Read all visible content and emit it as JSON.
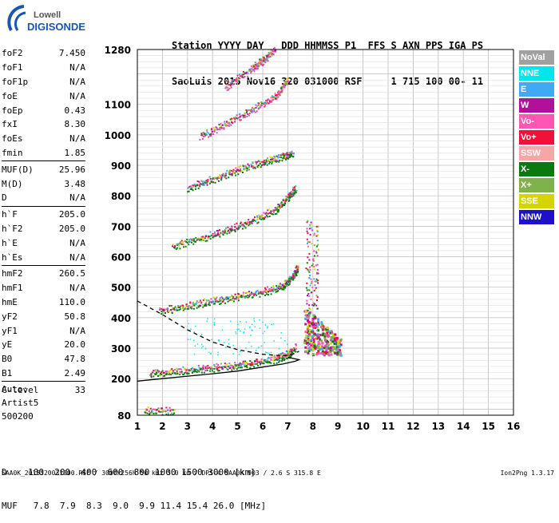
{
  "logo": {
    "line1": "Lowell",
    "line2": "DIGISONDE"
  },
  "header": {
    "line1": "Station YYYY DAY   DDD HHMMSS P1  FFS S AXN PPS IGA PS",
    "line2": "SaoLuis 2015 Nov16 320 031000 RSF     1 715 100 00- 11"
  },
  "params": [
    {
      "name": "foF2",
      "value": "7.450"
    },
    {
      "name": "foF1",
      "value": "N/A"
    },
    {
      "name": "foF1p",
      "value": "N/A"
    },
    {
      "name": "foE",
      "value": "N/A"
    },
    {
      "name": "foEp",
      "value": "0.43"
    },
    {
      "name": "fxI",
      "value": "8.30"
    },
    {
      "name": "foEs",
      "value": "N/A"
    },
    {
      "name": "fmin",
      "value": "1.85"
    },
    {
      "name": "MUF(D)",
      "value": "25.96"
    },
    {
      "name": "M(D)",
      "value": "3.48"
    },
    {
      "name": "D",
      "value": "N/A"
    },
    {
      "name": "h`F",
      "value": "205.0"
    },
    {
      "name": "h`F2",
      "value": "205.0"
    },
    {
      "name": "h`E",
      "value": "N/A"
    },
    {
      "name": "h`Es",
      "value": "N/A"
    },
    {
      "name": "hmF2",
      "value": "260.5"
    },
    {
      "name": "hmF1",
      "value": "N/A"
    },
    {
      "name": "hmE",
      "value": "110.0"
    },
    {
      "name": "yF2",
      "value": "50.8"
    },
    {
      "name": "yF1",
      "value": "N/A"
    },
    {
      "name": "yE",
      "value": "20.0"
    },
    {
      "name": "B0",
      "value": "47.8"
    },
    {
      "name": "B1",
      "value": "2.49"
    },
    {
      "name": "C-level",
      "value": "33"
    }
  ],
  "auto": {
    "line1": "Auto:",
    "line2": "Artist5",
    "line3": "500200"
  },
  "legend": [
    {
      "label": "NoVal",
      "color": "#a0a0a0"
    },
    {
      "label": "NNE",
      "color": "#00e5ee"
    },
    {
      "label": "E",
      "color": "#3fa9f5"
    },
    {
      "label": "W",
      "color": "#b0109a"
    },
    {
      "label": "Vo-",
      "color": "#ff55b5"
    },
    {
      "label": "Vo+",
      "color": "#f0103a"
    },
    {
      "label": "SSW",
      "color": "#f6a6a6"
    },
    {
      "label": "X-",
      "color": "#0a7a10"
    },
    {
      "label": "X+",
      "color": "#7fb24a"
    },
    {
      "label": "SSE",
      "color": "#d4d400"
    },
    {
      "label": "NNW",
      "color": "#1e10c8"
    }
  ],
  "footer": {
    "d_row": "D    100  200  400  600  800 1000 1500 3000 [km]",
    "muf_row": "MUF   7.8  7.9  8.3  9.0  9.9 11.4 15.4 26.0 [MHz]",
    "file": "SAA0K_2015320031000.RSF / 300fx256h 50 kHz 5.0 km / DPS-4 SAA0K 903 / 2.6 S 315.8 E",
    "version": "Ion2Png 1.3.17"
  },
  "chart_data": {
    "type": "scatter",
    "title": "",
    "xlabel": "",
    "ylabel": "",
    "xlim": [
      1,
      16
    ],
    "ylim": [
      80,
      1280
    ],
    "x_ticks": [
      1,
      2,
      3,
      4,
      5,
      6,
      7,
      8,
      9,
      10,
      11,
      12,
      13,
      14,
      15,
      16
    ],
    "y_ticks": [
      80,
      200,
      300,
      400,
      500,
      600,
      700,
      800,
      900,
      1000,
      1100,
      1280
    ],
    "grid": true,
    "traces": [
      {
        "name": "E",
        "color": "#0a7a10",
        "x": [
          1.3,
          2.5
        ],
        "y": [
          90,
          90
        ]
      },
      {
        "name": "F 1st hop",
        "color": "#0a7a10",
        "x": [
          1.5,
          2.5,
          3.5,
          4.5,
          5.5,
          6.5,
          7.0,
          7.3
        ],
        "y": [
          210,
          220,
          228,
          235,
          245,
          260,
          275,
          300
        ]
      },
      {
        "name": "F 2nd hop",
        "color": "#0a7a10",
        "x": [
          1.9,
          3.0,
          4.0,
          5.0,
          6.0,
          6.8,
          7.2,
          7.4
        ],
        "y": [
          418,
          435,
          450,
          465,
          480,
          500,
          530,
          560
        ]
      },
      {
        "name": "F 3rd hop",
        "color": "#0a7a10",
        "x": [
          2.4,
          3.5,
          4.5,
          5.5,
          6.5,
          7.0,
          7.3
        ],
        "y": [
          630,
          655,
          680,
          710,
          750,
          790,
          820
        ]
      },
      {
        "name": "F 4th hop",
        "color": "#0a7a10",
        "x": [
          3.0,
          4.0,
          5.0,
          6.0,
          6.8,
          7.2
        ],
        "y": [
          820,
          850,
          880,
          905,
          925,
          935
        ]
      },
      {
        "name": "F 5th hop",
        "color": "#d050a0",
        "x": [
          3.5,
          4.5,
          5.5,
          6.5,
          7.0
        ],
        "y": [
          990,
          1030,
          1075,
          1120,
          1180
        ]
      },
      {
        "name": "F 6th hop",
        "color": "#d050a0",
        "x": [
          4.5,
          5.5,
          6.0,
          6.5
        ],
        "y": [
          1150,
          1210,
          1240,
          1275
        ]
      }
    ],
    "profile_solid": {
      "x": [
        1,
        2,
        3,
        4,
        5,
        6,
        6.8,
        7.3,
        7.45,
        7.0
      ],
      "y": [
        192,
        200,
        208,
        216,
        225,
        238,
        248,
        257,
        262,
        270
      ]
    },
    "profile_dashed": {
      "x": [
        1,
        2,
        3,
        4,
        5,
        6,
        6.8,
        7.2,
        7.45
      ],
      "y": [
        455,
        410,
        360,
        320,
        295,
        280,
        275,
        280,
        290
      ]
    }
  }
}
